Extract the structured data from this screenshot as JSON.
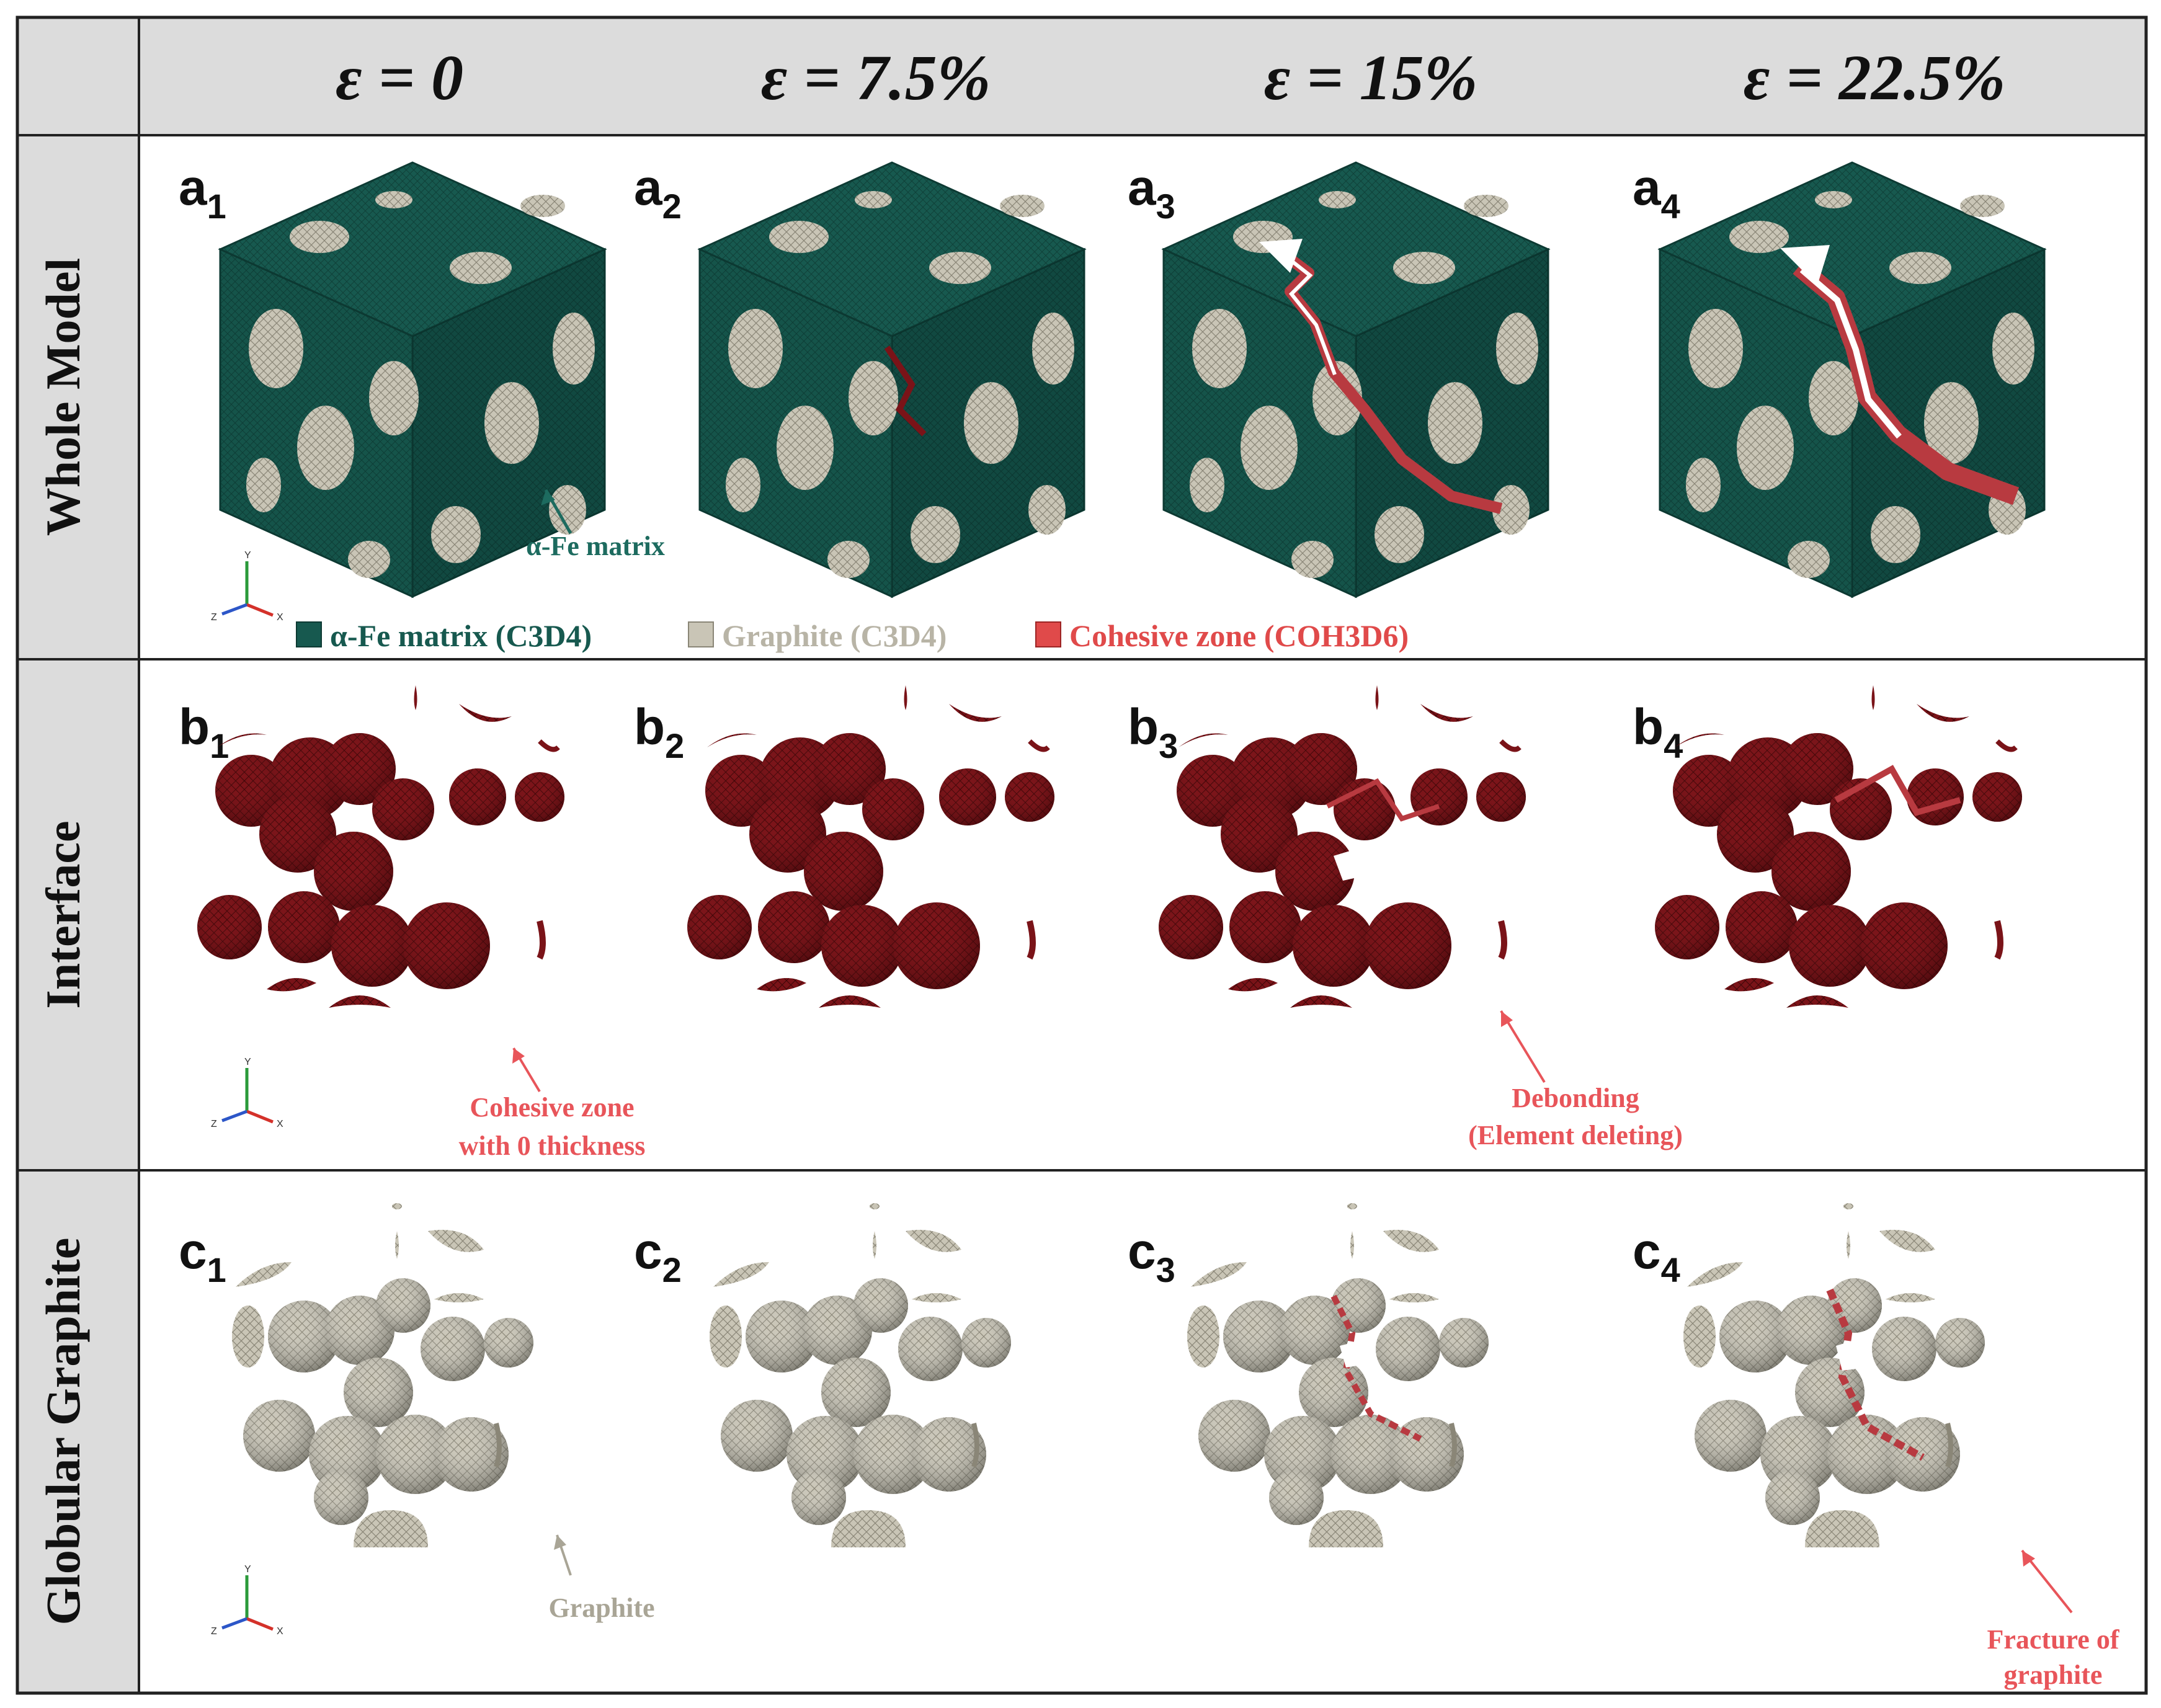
{
  "header": {
    "columns": [
      "ε = 0",
      "ε = 7.5%",
      "ε = 15%",
      "ε = 22.5%"
    ]
  },
  "rows": [
    {
      "label": "Whole Model",
      "panels": [
        "a",
        "a",
        "a",
        "a"
      ],
      "subs": [
        "1",
        "2",
        "3",
        "4"
      ]
    },
    {
      "label": "Interface",
      "panels": [
        "b",
        "b",
        "b",
        "b"
      ],
      "subs": [
        "1",
        "2",
        "3",
        "4"
      ]
    },
    {
      "label": "Globular Graphite",
      "panels": [
        "c",
        "c",
        "c",
        "c"
      ],
      "subs": [
        "1",
        "2",
        "3",
        "4"
      ]
    }
  ],
  "annotations": {
    "matrix": "α-Fe matrix",
    "cohesive_zero": [
      "Cohesive zone",
      "with 0 thickness"
    ],
    "debonding": [
      "Debonding",
      "(Element deleting)"
    ],
    "graphite": "Graphite",
    "fracture": [
      "Fracture of",
      "graphite"
    ]
  },
  "legend": {
    "items": [
      {
        "label": "α-Fe matrix (C3D4)",
        "color": "#17594f"
      },
      {
        "label": "Graphite (C3D4)",
        "color": "#c9c5b6"
      },
      {
        "label": "Cohesive zone (COH3D6)",
        "color": "#e04a4a"
      }
    ]
  },
  "axis_triad": {
    "y": "Y",
    "z": "Z",
    "x": "X"
  },
  "colors": {
    "matrix": "#17594f",
    "graphite": "#c9c5b6",
    "cohesive": "#7a1318",
    "annotation_red": "#e8555a",
    "annotation_green": "#1d6b5f",
    "grid": "#222222",
    "header_bg": "#dcdcdc"
  }
}
